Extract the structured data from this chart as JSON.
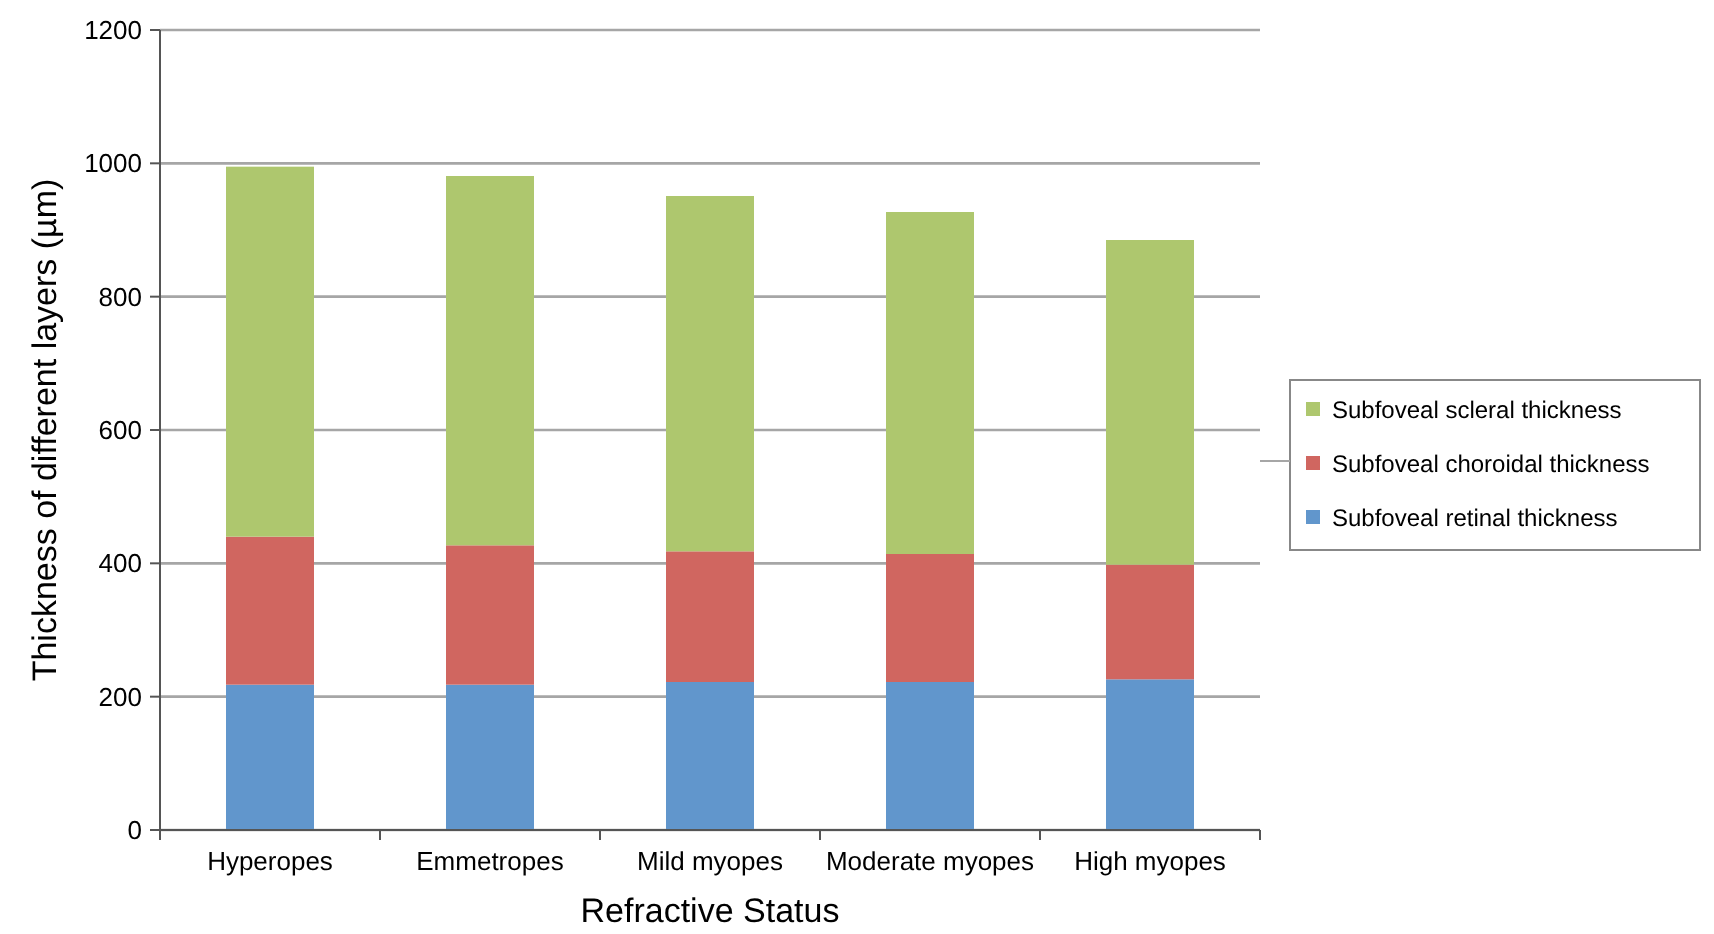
{
  "chart_data": {
    "type": "bar",
    "stacked": true,
    "xlabel": "Refractive Status",
    "ylabel": "Thickness of different layers (µm)",
    "categories": [
      "Hyperopes",
      "Emmetropes",
      "Mild myopes",
      "Moderate myopes",
      "High myopes"
    ],
    "series": [
      {
        "name": "Subfoveal retinal thickness",
        "color": "#6196cc",
        "values": [
          218,
          218,
          222,
          222,
          226
        ]
      },
      {
        "name": "Subfoveal choroidal thickness",
        "color": "#d06660",
        "values": [
          222,
          209,
          196,
          192,
          172
        ]
      },
      {
        "name": "Subfoveal scleral thickness",
        "color": "#aec76e",
        "values": [
          555,
          554,
          533,
          513,
          487
        ]
      }
    ],
    "ylim": [
      0,
      1200
    ],
    "yticks": [
      0,
      200,
      400,
      600,
      800,
      1000,
      1200
    ],
    "grid": "y",
    "legend": "right"
  }
}
